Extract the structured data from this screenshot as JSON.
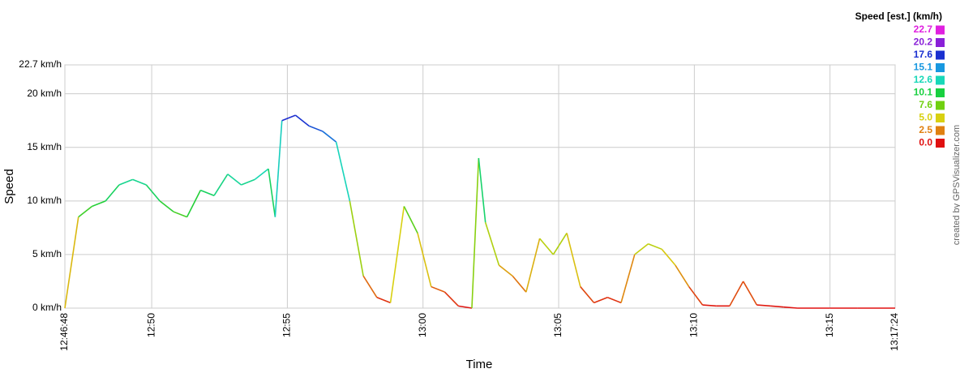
{
  "chart_data": {
    "type": "line",
    "xlabel": "Time",
    "ylabel": "Speed",
    "side_note": "created by GPSVisualizer.com",
    "x": [
      "12:46:48",
      "12:47:18",
      "12:47:48",
      "12:48:18",
      "12:48:48",
      "12:49:18",
      "12:49:48",
      "12:50:18",
      "12:50:48",
      "12:51:18",
      "12:51:48",
      "12:52:18",
      "12:52:48",
      "12:53:18",
      "12:53:48",
      "12:54:18",
      "12:54:33",
      "12:54:48",
      "12:55:18",
      "12:55:48",
      "12:56:18",
      "12:56:48",
      "12:57:18",
      "12:57:48",
      "12:58:18",
      "12:58:48",
      "12:59:18",
      "12:59:48",
      "13:00:18",
      "13:00:48",
      "13:01:18",
      "13:01:48",
      "13:02:03",
      "13:02:18",
      "13:02:48",
      "13:03:18",
      "13:03:48",
      "13:04:18",
      "13:04:48",
      "13:05:18",
      "13:05:48",
      "13:06:18",
      "13:06:48",
      "13:07:18",
      "13:07:48",
      "13:08:18",
      "13:08:48",
      "13:09:18",
      "13:09:48",
      "13:10:18",
      "13:10:48",
      "13:11:18",
      "13:11:48",
      "13:12:18",
      "13:12:48",
      "13:13:18",
      "13:13:48",
      "13:15:00",
      "13:16:00",
      "13:17:24"
    ],
    "series": [
      {
        "name": "Speed",
        "values": [
          0,
          8.5,
          9.5,
          10,
          11.5,
          12,
          11.5,
          10,
          9,
          8.5,
          11,
          10.5,
          12.5,
          11.5,
          12,
          13,
          8.5,
          17.5,
          18,
          17,
          16.5,
          15.5,
          10,
          3,
          1,
          0.5,
          9.5,
          7,
          2,
          1.5,
          0.2,
          0,
          14,
          8,
          4,
          3,
          1.5,
          6.5,
          5,
          7,
          2,
          0.5,
          1,
          0.5,
          5,
          6,
          5.5,
          4,
          2,
          0.3,
          0.2,
          0.2,
          2.5,
          0.3,
          0.2,
          0.1,
          0,
          0,
          0,
          0
        ]
      }
    ],
    "xlim": [
      "12:46:48",
      "13:17:24"
    ],
    "xticks": [
      "12:46:48",
      "12:50",
      "12:55",
      "13:00",
      "13:05",
      "13:10",
      "13:15",
      "13:17:24"
    ],
    "ylim": [
      0,
      22.7
    ],
    "yticks": [
      {
        "value": 0,
        "label": "0 km/h"
      },
      {
        "value": 5,
        "label": "5 km/h"
      },
      {
        "value": 10,
        "label": "10 km/h"
      },
      {
        "value": 15,
        "label": "15 km/h"
      },
      {
        "value": 20,
        "label": "20 km/h"
      },
      {
        "value": 22.7,
        "label": "22.7 km/h"
      }
    ],
    "grid": true,
    "legend": {
      "title": "Speed [est.] (km/h)",
      "position": "top-right",
      "stops": [
        {
          "value": 22.7,
          "label": "22.7",
          "color": "#e020e0"
        },
        {
          "value": 20.2,
          "label": "20.2",
          "color": "#8a20d8"
        },
        {
          "value": 17.6,
          "label": "17.6",
          "color": "#1a30d0"
        },
        {
          "value": 15.1,
          "label": "15.1",
          "color": "#1898e0"
        },
        {
          "value": 12.6,
          "label": "12.6",
          "color": "#18d8b8"
        },
        {
          "value": 10.1,
          "label": "10.1",
          "color": "#18d040"
        },
        {
          "value": 7.6,
          "label": "7.6",
          "color": "#70d010"
        },
        {
          "value": 5.0,
          "label": "5.0",
          "color": "#d8d010"
        },
        {
          "value": 2.5,
          "label": "2.5",
          "color": "#e08010"
        },
        {
          "value": 0.0,
          "label": "0.0",
          "color": "#e01010"
        }
      ]
    }
  }
}
